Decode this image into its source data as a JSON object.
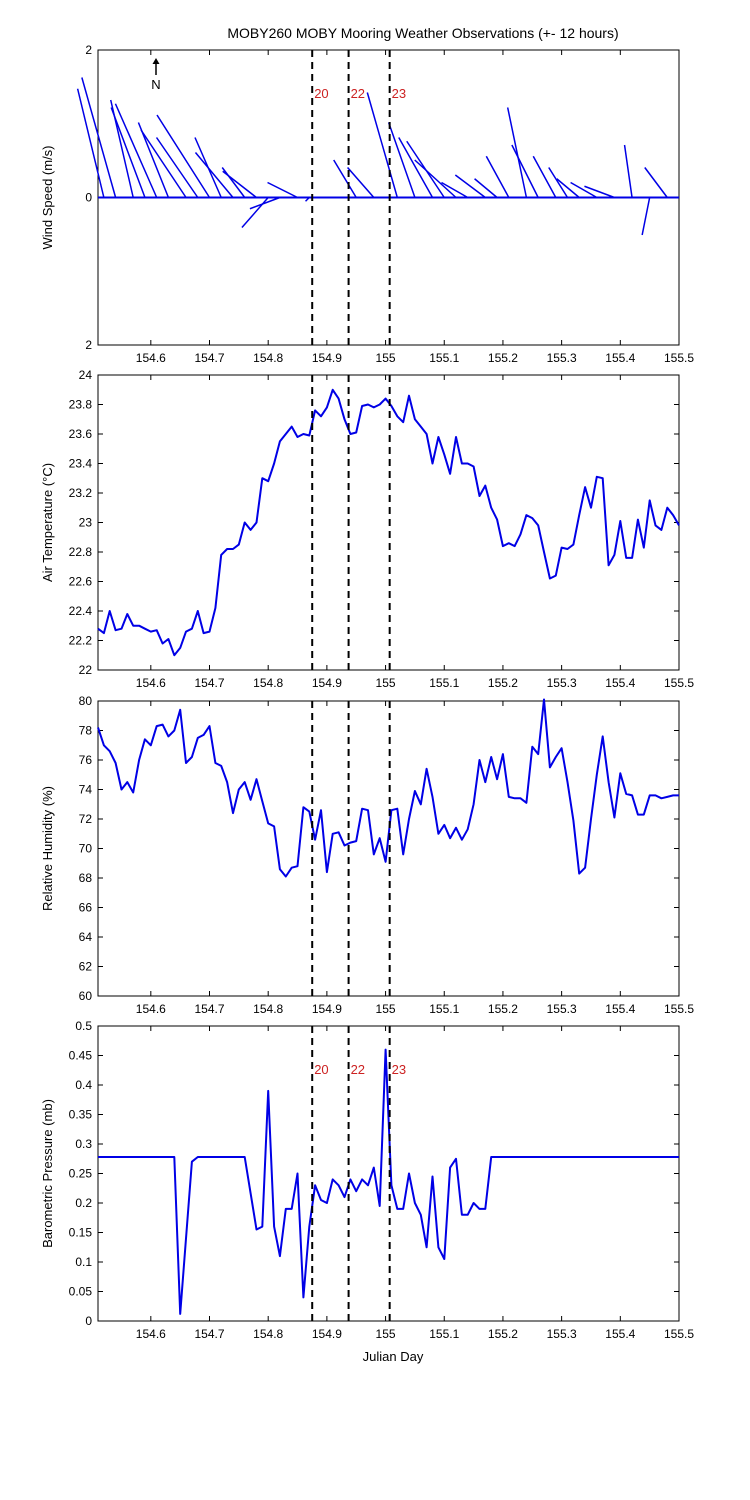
{
  "title": "MOBY260 MOBY Mooring Weather Observations (+- 12 hours)",
  "colors": {
    "series": "#0000e6",
    "marker_label": "#cc2222",
    "axes": "#000000"
  },
  "north_arrow_label": "N",
  "x_axis": {
    "label": "Julian Day",
    "range": [
      154.51,
      155.5
    ],
    "ticks": [
      154.6,
      154.7,
      154.8,
      154.9,
      155.0,
      155.1,
      155.2,
      155.3,
      155.4,
      155.5
    ],
    "tick_labels": [
      "154.6",
      "154.7",
      "154.8",
      "154.9",
      "155",
      "155.1",
      "155.2",
      "155.3",
      "155.4",
      "155.5"
    ]
  },
  "markers": [
    {
      "label": "20",
      "x": 154.875
    },
    {
      "label": "22",
      "x": 154.937
    },
    {
      "label": "23",
      "x": 155.007
    }
  ],
  "chart_data": [
    {
      "type": "line",
      "subtype": "wind-vectors",
      "ylabel": "Wind Speed (m/s)",
      "ylim": [
        -2,
        2
      ],
      "ytick_labels": [
        "2",
        "0",
        "2"
      ],
      "show_marker_labels": true,
      "vectors": {
        "x": [
          154.52,
          154.54,
          154.57,
          154.59,
          154.61,
          154.63,
          154.66,
          154.68,
          154.7,
          154.72,
          154.74,
          154.76,
          154.78,
          154.8,
          154.82,
          154.85,
          154.87,
          154.95,
          154.98,
          155.02,
          155.05,
          155.08,
          155.1,
          155.12,
          155.14,
          155.17,
          155.19,
          155.21,
          155.24,
          155.26,
          155.29,
          155.31,
          155.33,
          155.36,
          155.39,
          155.42,
          155.45,
          155.48
        ],
        "u": [
          -0.35,
          -0.45,
          -0.3,
          -0.45,
          -0.55,
          -0.4,
          -0.6,
          -0.55,
          -0.7,
          -0.35,
          -0.5,
          -0.3,
          -0.45,
          -0.35,
          -0.4,
          -0.4,
          -0.05,
          -0.3,
          -0.35,
          -0.4,
          -0.35,
          -0.45,
          -0.5,
          -0.55,
          -0.35,
          -0.4,
          -0.3,
          -0.3,
          -0.25,
          -0.35,
          -0.3,
          -0.25,
          -0.3,
          -0.35,
          -0.4,
          -0.1,
          -0.1,
          -0.3
        ],
        "v": [
          1.45,
          1.6,
          1.3,
          1.2,
          1.25,
          1.0,
          0.9,
          0.8,
          1.1,
          0.8,
          0.6,
          0.4,
          0.35,
          -0.4,
          -0.15,
          0.2,
          -0.05,
          0.5,
          0.4,
          1.4,
          1.0,
          0.8,
          0.75,
          0.5,
          0.2,
          0.3,
          0.25,
          0.55,
          1.2,
          0.7,
          0.55,
          0.4,
          0.25,
          0.2,
          0.15,
          0.7,
          -0.5,
          0.4
        ]
      }
    },
    {
      "type": "line",
      "ylabel": "Air Temperature (°C)",
      "ylim": [
        22,
        24
      ],
      "ytick_labels": [
        "22",
        "22.2",
        "22.4",
        "22.6",
        "22.8",
        "23",
        "23.2",
        "23.4",
        "23.6",
        "23.8",
        "24"
      ],
      "x": [
        154.51,
        154.52,
        154.53,
        154.54,
        154.55,
        154.56,
        154.57,
        154.58,
        154.59,
        154.6,
        154.61,
        154.62,
        154.63,
        154.64,
        154.65,
        154.66,
        154.67,
        154.68,
        154.69,
        154.7,
        154.71,
        154.72,
        154.73,
        154.74,
        154.75,
        154.76,
        154.77,
        154.78,
        154.79,
        154.8,
        154.81,
        154.82,
        154.83,
        154.84,
        154.85,
        154.86,
        154.87,
        154.88,
        154.89,
        154.9,
        154.91,
        154.92,
        154.93,
        154.94,
        154.95,
        154.96,
        154.97,
        154.98,
        154.99,
        155.0,
        155.01,
        155.02,
        155.03,
        155.04,
        155.05,
        155.06,
        155.07,
        155.08,
        155.09,
        155.1,
        155.11,
        155.12,
        155.13,
        155.14,
        155.15,
        155.16,
        155.17,
        155.18,
        155.19,
        155.2,
        155.21,
        155.22,
        155.23,
        155.24,
        155.25,
        155.26,
        155.27,
        155.28,
        155.29,
        155.3,
        155.31,
        155.32,
        155.33,
        155.34,
        155.35,
        155.36,
        155.37,
        155.38,
        155.39,
        155.4,
        155.41,
        155.42,
        155.43,
        155.44,
        155.45,
        155.46,
        155.47,
        155.48,
        155.49,
        155.5
      ],
      "y": [
        22.28,
        22.25,
        22.4,
        22.27,
        22.28,
        22.38,
        22.3,
        22.3,
        22.28,
        22.26,
        22.27,
        22.18,
        22.21,
        22.1,
        22.15,
        22.26,
        22.28,
        22.4,
        22.25,
        22.26,
        22.42,
        22.78,
        22.82,
        22.82,
        22.85,
        23.0,
        22.95,
        23.0,
        23.3,
        23.28,
        23.4,
        23.55,
        23.6,
        23.65,
        23.58,
        23.6,
        23.59,
        23.76,
        23.72,
        23.78,
        23.9,
        23.84,
        23.7,
        23.6,
        23.61,
        23.79,
        23.8,
        23.78,
        23.8,
        23.84,
        23.79,
        23.72,
        23.68,
        23.86,
        23.7,
        23.65,
        23.6,
        23.4,
        23.58,
        23.46,
        23.33,
        23.58,
        23.4,
        23.4,
        23.38,
        23.18,
        23.25,
        23.1,
        23.02,
        22.84,
        22.86,
        22.84,
        22.92,
        23.05,
        23.03,
        22.98,
        22.8,
        22.62,
        22.64,
        22.83,
        22.82,
        22.85,
        23.05,
        23.24,
        23.1,
        23.31,
        23.3,
        22.71,
        22.78,
        23.01,
        22.76,
        22.76,
        23.02,
        22.83,
        23.15,
        22.98,
        22.95,
        23.1,
        23.05,
        22.98
      ]
    },
    {
      "type": "line",
      "ylabel": "Relative Humidity (%)",
      "ylim": [
        60,
        80
      ],
      "ytick_labels": [
        "60",
        "62",
        "64",
        "66",
        "68",
        "70",
        "72",
        "74",
        "76",
        "78",
        "80"
      ],
      "x": [
        154.51,
        154.52,
        154.53,
        154.54,
        154.55,
        154.56,
        154.57,
        154.58,
        154.59,
        154.6,
        154.61,
        154.62,
        154.63,
        154.64,
        154.65,
        154.66,
        154.67,
        154.68,
        154.69,
        154.7,
        154.71,
        154.72,
        154.73,
        154.74,
        154.75,
        154.76,
        154.77,
        154.78,
        154.79,
        154.8,
        154.81,
        154.82,
        154.83,
        154.84,
        154.85,
        154.86,
        154.87,
        154.88,
        154.89,
        154.9,
        154.91,
        154.92,
        154.93,
        154.94,
        154.95,
        154.96,
        154.97,
        154.98,
        154.99,
        155.0,
        155.01,
        155.02,
        155.03,
        155.04,
        155.05,
        155.06,
        155.07,
        155.08,
        155.09,
        155.1,
        155.11,
        155.12,
        155.13,
        155.14,
        155.15,
        155.16,
        155.17,
        155.18,
        155.19,
        155.2,
        155.21,
        155.22,
        155.23,
        155.24,
        155.25,
        155.26,
        155.27,
        155.28,
        155.29,
        155.3,
        155.31,
        155.32,
        155.33,
        155.34,
        155.35,
        155.36,
        155.37,
        155.38,
        155.39,
        155.4,
        155.41,
        155.42,
        155.43,
        155.44,
        155.45,
        155.46,
        155.47,
        155.48,
        155.49,
        155.5
      ],
      "y": [
        78.2,
        77.0,
        76.6,
        75.8,
        74.0,
        74.5,
        73.8,
        76.0,
        77.4,
        77.0,
        78.3,
        78.4,
        77.6,
        78.0,
        79.4,
        75.8,
        76.2,
        77.5,
        77.7,
        78.3,
        75.8,
        75.6,
        74.5,
        72.4,
        74.0,
        74.5,
        73.3,
        74.7,
        73.2,
        71.7,
        71.5,
        68.6,
        68.1,
        68.7,
        68.8,
        72.8,
        72.5,
        70.6,
        72.6,
        68.4,
        71.0,
        71.1,
        70.2,
        70.4,
        70.5,
        72.7,
        72.6,
        69.6,
        70.7,
        69.1,
        72.6,
        72.7,
        69.6,
        72.0,
        73.9,
        73.0,
        75.4,
        73.5,
        71.0,
        71.6,
        70.7,
        71.4,
        70.6,
        71.3,
        73.0,
        76.0,
        74.5,
        76.2,
        74.7,
        76.4,
        73.5,
        73.4,
        73.4,
        73.1,
        76.9,
        76.4,
        80.1,
        75.5,
        76.2,
        76.8,
        74.5,
        71.9,
        68.3,
        68.7,
        72.0,
        75.0,
        77.6,
        74.5,
        72.1,
        75.1,
        73.7,
        73.6,
        72.3,
        72.3,
        73.6,
        73.6,
        73.4,
        73.5,
        73.6,
        73.6
      ]
    },
    {
      "type": "line",
      "ylabel": "Barometric Pressure (mb)",
      "ylim": [
        0,
        0.5
      ],
      "ytick_labels": [
        "0",
        "0.05",
        "0.1",
        "0.15",
        "0.2",
        "0.25",
        "0.3",
        "0.35",
        "0.4",
        "0.45",
        "0.5"
      ],
      "show_marker_labels": true,
      "x": [
        154.51,
        154.64,
        154.65,
        154.67,
        154.68,
        154.76,
        154.78,
        154.79,
        154.8,
        154.81,
        154.82,
        154.83,
        154.84,
        154.85,
        154.86,
        154.87,
        154.88,
        154.89,
        154.9,
        154.91,
        154.92,
        154.93,
        154.94,
        154.95,
        154.96,
        154.97,
        154.98,
        154.99,
        155.0,
        155.01,
        155.02,
        155.03,
        155.04,
        155.05,
        155.06,
        155.07,
        155.08,
        155.09,
        155.1,
        155.11,
        155.12,
        155.13,
        155.14,
        155.15,
        155.16,
        155.17,
        155.18,
        155.19,
        155.2,
        155.21,
        155.5
      ],
      "y": [
        0.278,
        0.278,
        0.012,
        0.27,
        0.278,
        0.278,
        0.155,
        0.16,
        0.39,
        0.16,
        0.11,
        0.19,
        0.19,
        0.25,
        0.04,
        0.16,
        0.23,
        0.205,
        0.2,
        0.24,
        0.23,
        0.21,
        0.24,
        0.22,
        0.24,
        0.23,
        0.26,
        0.195,
        0.46,
        0.23,
        0.19,
        0.19,
        0.25,
        0.2,
        0.18,
        0.125,
        0.245,
        0.125,
        0.105,
        0.26,
        0.275,
        0.18,
        0.18,
        0.2,
        0.19,
        0.19,
        0.278,
        0.278,
        0.278,
        0.278,
        0.278
      ]
    }
  ]
}
